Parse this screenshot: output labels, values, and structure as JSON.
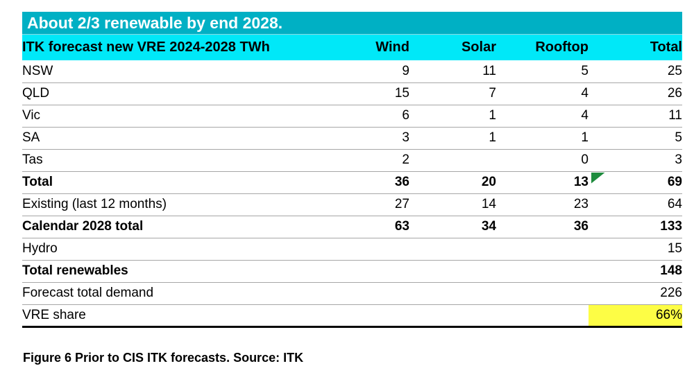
{
  "title_bar": {
    "text": "About 2/3 renewable by end 2028."
  },
  "table": {
    "header": {
      "label": "ITK forecast new VRE  2024-2028 TWh",
      "columns": [
        "Wind",
        "Solar",
        "Rooftop",
        "Total"
      ]
    },
    "rows": [
      {
        "label": "NSW",
        "wind": "9",
        "solar": "11",
        "rooftop": "5",
        "total": "25",
        "bold": false
      },
      {
        "label": "QLD",
        "wind": "15",
        "solar": "7",
        "rooftop": "4",
        "total": "26",
        "bold": false
      },
      {
        "label": "Vic",
        "wind": "6",
        "solar": "1",
        "rooftop": "4",
        "total": "11",
        "bold": false
      },
      {
        "label": "SA",
        "wind": "3",
        "solar": "1",
        "rooftop": "1",
        "total": "5",
        "bold": false
      },
      {
        "label": "Tas",
        "wind": "2",
        "solar": "",
        "rooftop": "0",
        "total": "3",
        "bold": false
      },
      {
        "label": "Total",
        "wind": "36",
        "solar": "20",
        "rooftop": "13",
        "total": "69",
        "bold": true,
        "flag": true
      },
      {
        "label": "Existing (last 12 months)",
        "wind": "27",
        "solar": "14",
        "rooftop": "23",
        "total": "64",
        "bold": false
      },
      {
        "label": "Calendar 2028 total",
        "wind": "63",
        "solar": "34",
        "rooftop": "36",
        "total": "133",
        "bold": true
      },
      {
        "label": "Hydro",
        "wind": "",
        "solar": "",
        "rooftop": "",
        "total": "15",
        "bold": false
      },
      {
        "label": "Total renewables",
        "wind": "",
        "solar": "",
        "rooftop": "",
        "total": "148",
        "bold": true
      },
      {
        "label": "Forecast total demand",
        "wind": "",
        "solar": "",
        "rooftop": "",
        "total": "226",
        "bold": false
      },
      {
        "label": "VRE share",
        "wind": "",
        "solar": "",
        "rooftop": "",
        "total": "66%",
        "bold": false,
        "highlight": true
      }
    ]
  },
  "caption": "Figure 6 Prior to CIS ITK forecasts. Source: ITK",
  "colors": {
    "title_bg": "#00b0c4",
    "title_text": "#ffffff",
    "header_bg": "#00e8f8",
    "highlight_yellow": "#fdfd45",
    "flag_green": "#1e8b3d",
    "row_separator": "#a6a6a6",
    "bottom_border": "#000000"
  },
  "chart_data": {
    "type": "table",
    "title": "About 2/3 renewable by end 2028.",
    "columns": [
      "ITK forecast new VRE  2024-2028 TWh",
      "Wind",
      "Solar",
      "Rooftop",
      "Total"
    ],
    "rows": [
      [
        "NSW",
        9,
        11,
        5,
        25
      ],
      [
        "QLD",
        15,
        7,
        4,
        26
      ],
      [
        "Vic",
        6,
        1,
        4,
        11
      ],
      [
        "SA",
        3,
        1,
        1,
        5
      ],
      [
        "Tas",
        2,
        null,
        0,
        3
      ],
      [
        "Total",
        36,
        20,
        13,
        69
      ],
      [
        "Existing (last 12 months)",
        27,
        14,
        23,
        64
      ],
      [
        "Calendar 2028 total",
        63,
        34,
        36,
        133
      ],
      [
        "Hydro",
        null,
        null,
        null,
        15
      ],
      [
        "Total renewables",
        null,
        null,
        null,
        148
      ],
      [
        "Forecast total demand",
        null,
        null,
        null,
        226
      ],
      [
        "VRE share",
        null,
        null,
        null,
        "66%"
      ]
    ],
    "highlighted_cells": [
      {
        "row": "VRE share",
        "column": "Total",
        "color": "#fdfd45"
      }
    ],
    "caption": "Figure 6 Prior to CIS ITK forecasts. Source: ITK"
  }
}
